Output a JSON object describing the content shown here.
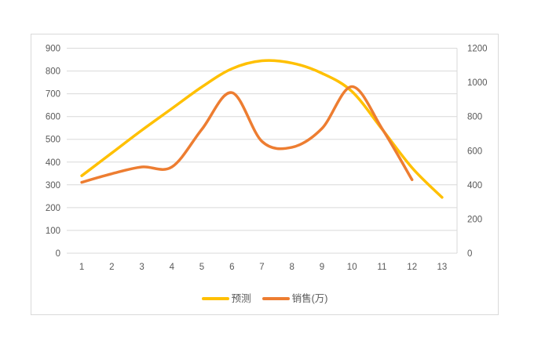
{
  "chart_data": {
    "type": "line",
    "smooth": true,
    "grid": "horizontal",
    "legend_position": "bottom",
    "categories": [
      "1",
      "2",
      "3",
      "4",
      "5",
      "6",
      "7",
      "8",
      "9",
      "10",
      "11",
      "12",
      "13"
    ],
    "series": [
      {
        "name": "预测",
        "axis": "left",
        "color": "#FFC000",
        "values": [
          340,
          440,
          540,
          635,
          730,
          810,
          845,
          835,
          790,
          710,
          545,
          375,
          245
        ]
      },
      {
        "name": "销售(万)",
        "axis": "right",
        "color": "#ED7D31",
        "values": [
          415,
          465,
          505,
          505,
          725,
          940,
          655,
          620,
          730,
          975,
          730,
          430
        ]
      }
    ],
    "left_axis": {
      "min": 0,
      "max": 900,
      "step": 100,
      "tick_labels": [
        "900",
        "800",
        "700",
        "600",
        "500",
        "400",
        "300",
        "200",
        "100",
        "0"
      ]
    },
    "right_axis": {
      "min": 0,
      "max": 1200,
      "step": 200,
      "tick_labels": [
        "1200",
        "1000",
        "800",
        "600",
        "400",
        "200",
        "0"
      ]
    },
    "xlabel": "",
    "ylabel": "",
    "title": ""
  },
  "legend": {
    "items": [
      {
        "label": "预测",
        "color": "#FFC000"
      },
      {
        "label": "销售(万)",
        "color": "#ED7D31"
      }
    ]
  },
  "colors": {
    "gridline": "#d9d9d9",
    "frame_border": "#d9d9d9",
    "axis_text": "#595959",
    "background": "#ffffff"
  }
}
